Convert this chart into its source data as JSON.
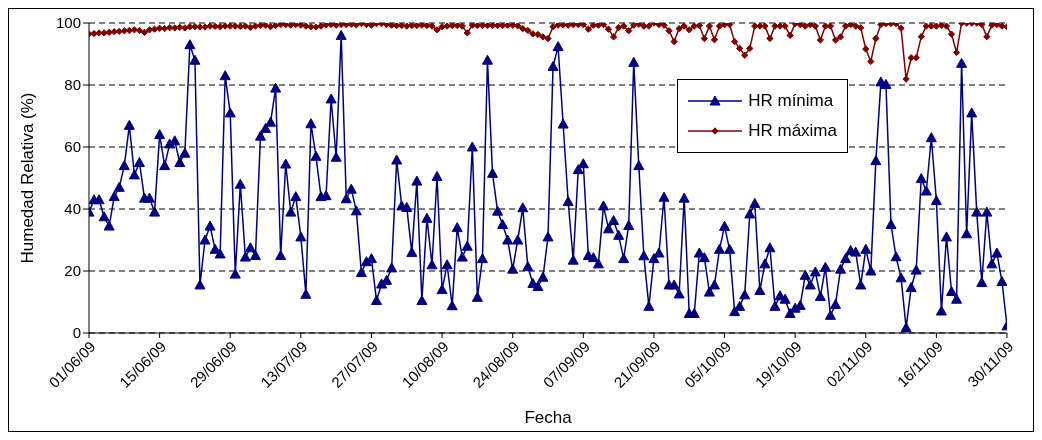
{
  "chart_data": {
    "type": "line",
    "xlabel": "Fecha",
    "ylabel": "Humedad Relativa (%)",
    "ylim": [
      0,
      100
    ],
    "yticks": [
      0,
      20,
      40,
      60,
      80,
      100
    ],
    "xlim": [
      "--06-01",
      "--11-30"
    ],
    "xticks": [
      {
        "value": "--06-01",
        "label": "01/06/09"
      },
      {
        "value": "--06-15",
        "label": "15/06/09"
      },
      {
        "value": "--06-29",
        "label": "29/06/09"
      },
      {
        "value": "--07-13",
        "label": "13/07/09"
      },
      {
        "value": "--07-27",
        "label": "27/07/09"
      },
      {
        "value": "--08-10",
        "label": "10/08/09"
      },
      {
        "value": "--08-24",
        "label": "24/08/09"
      },
      {
        "value": "--09-07",
        "label": "07/09/09"
      },
      {
        "value": "--09-21",
        "label": "21/09/09"
      },
      {
        "value": "--10-05",
        "label": "05/10/09"
      },
      {
        "value": "--10-19",
        "label": "19/10/09"
      },
      {
        "value": "--11-02",
        "label": "02/11/09"
      },
      {
        "value": "--11-16",
        "label": "16/11/09"
      },
      {
        "value": "--11-30",
        "label": "30/11/09"
      }
    ],
    "grid": "y",
    "legend": "top right",
    "line_style": "solid",
    "series": [
      {
        "name": "HR mínima",
        "color": "#000080",
        "marker": "triangle",
        "values": [
          39,
          43,
          43,
          37.5,
          34.5,
          44,
          47,
          54,
          67,
          51,
          55,
          43.5,
          43.5,
          39,
          64,
          54,
          61,
          62,
          55,
          58,
          93,
          88,
          15.5,
          30,
          34.5,
          27,
          25.5,
          83,
          71,
          19,
          48,
          24.5,
          27.5,
          25,
          63.5,
          66,
          68,
          79,
          25,
          54.5,
          39,
          44,
          31,
          12.5,
          67.5,
          57,
          44,
          44.3,
          75.5,
          56.7,
          96,
          43.3,
          46.4,
          39.4,
          19.5,
          23,
          24,
          10.5,
          15.8,
          17,
          21,
          55.8,
          41,
          40.5,
          26,
          49,
          10.5,
          37,
          22,
          50.5,
          14,
          22,
          8.8,
          34,
          24.5,
          28,
          60,
          11.5,
          24,
          88,
          51.5,
          39.3,
          35,
          30,
          20.6,
          30,
          40.4,
          21.4,
          16,
          15,
          18,
          31,
          86,
          92.4,
          67.4,
          42.4,
          23.5,
          52.7,
          54.6,
          25,
          24.3,
          22.3,
          41,
          33.6,
          36.3,
          31.5,
          24,
          34.7,
          87.3,
          54,
          24.9,
          8.6,
          24,
          25.8,
          43.8,
          15.5,
          15.5,
          12.6,
          43.5,
          6.3,
          6.3,
          25.8,
          24.3,
          13.2,
          15.5,
          27,
          34.4,
          27,
          6.9,
          8.6,
          12.3,
          38.4,
          41.8,
          13.7,
          22.3,
          27.5,
          8.6,
          12,
          10.9,
          6.3,
          8,
          8.9,
          18.6,
          15.5,
          19.7,
          11.8,
          21.2,
          5.7,
          9.2,
          20.6,
          24,
          26.6,
          26.1,
          15.5,
          27,
          20,
          55.6,
          81,
          80.2,
          35,
          24.6,
          17.8,
          1.7,
          14.7,
          20.3,
          49.8,
          45.8,
          63,
          42.7,
          7.1,
          31,
          13.4,
          10.9,
          87,
          32,
          71,
          39,
          16.3,
          39,
          22.3,
          25.8,
          16.6,
          2.3
        ]
      },
      {
        "name": "HR máxima",
        "color": "#800000",
        "marker": "diamond",
        "values": [
          96.5,
          96.6,
          96.8,
          96.8,
          97,
          97.2,
          97.3,
          97.5,
          97.6,
          97.8,
          97.6,
          97,
          97.8,
          98,
          98.3,
          98.2,
          98.5,
          98.4,
          98.6,
          98.4,
          98.8,
          98.8,
          98.7,
          98.7,
          99,
          98.9,
          98.8,
          99,
          99,
          99,
          98.9,
          99,
          98.6,
          99,
          99.2,
          99.3,
          98.8,
          99.2,
          99.5,
          99.5,
          99.3,
          99.5,
          99.3,
          99,
          98.8,
          98.7,
          99,
          99.4,
          99.5,
          99.3,
          99.5,
          99.5,
          99.6,
          99.4,
          99.8,
          99.5,
          99.3,
          99.8,
          99.8,
          99.5,
          99.3,
          99.2,
          99.2,
          99,
          99.2,
          99.2,
          99.3,
          99.2,
          99,
          97.8,
          98.8,
          99,
          99.2,
          99.2,
          99,
          96.8,
          99.3,
          99.2,
          99.2,
          99.2,
          99.2,
          99.2,
          99.2,
          99.3,
          99.3,
          99.1,
          98.2,
          97.6,
          96.5,
          96.3,
          95.5,
          95,
          98.8,
          99.3,
          99.4,
          99.3,
          99.5,
          99.5,
          99.5,
          98,
          99.3,
          99.3,
          99.5,
          98,
          95.5,
          98.5,
          99,
          97.5,
          99.3,
          99.6,
          99,
          99,
          100,
          99.5,
          99.3,
          97.5,
          94,
          98.2,
          99,
          97.8,
          99,
          99.2,
          95,
          99,
          94.6,
          99,
          99.5,
          99.5,
          94,
          91.8,
          89.6,
          91.8,
          99,
          99,
          99,
          95,
          99,
          99,
          99,
          96,
          99.8,
          99.5,
          99,
          99.5,
          99,
          94.5,
          99,
          99,
          94.5,
          95.5,
          99,
          99.5,
          99,
          98.5,
          91.6,
          87.6,
          95,
          99.5,
          99.8,
          99.8,
          99.8,
          98.3,
          81.9,
          88.8,
          88.8,
          95.6,
          99,
          99,
          99,
          99.2,
          99,
          96.4,
          90.5,
          100,
          100,
          100,
          100,
          99.5,
          95.6,
          99.3,
          99.5,
          99,
          98.8
        ]
      }
    ],
    "x": [
      "--06-01",
      "--06-02",
      "--06-03",
      "--06-04",
      "--06-05",
      "--06-06",
      "--06-07",
      "--06-08",
      "--06-09",
      "--06-10",
      "--06-11",
      "--06-12",
      "--06-13",
      "--06-14",
      "--06-15",
      "--06-16",
      "--06-17",
      "--06-18",
      "--06-19",
      "--06-20",
      "--06-21",
      "--06-22",
      "--06-23",
      "--06-24",
      "--06-25",
      "--06-26",
      "--06-27",
      "--06-28",
      "--06-29",
      "--06-30",
      "--07-01",
      "--07-02",
      "--07-03",
      "--07-04",
      "--07-05",
      "--07-06",
      "--07-07",
      "--07-08",
      "--07-09",
      "--07-10",
      "--07-11",
      "--07-12",
      "--07-13",
      "--07-14",
      "--07-15",
      "--07-16",
      "--07-17",
      "--07-18",
      "--07-19",
      "--07-20",
      "--07-21",
      "--07-22",
      "--07-23",
      "--07-24",
      "--07-25",
      "--07-26",
      "--07-27",
      "--07-28",
      "--07-29",
      "--07-30",
      "--07-31",
      "--08-01",
      "--08-02",
      "--08-03",
      "--08-04",
      "--08-05",
      "--08-06",
      "--08-07",
      "--08-08",
      "--08-09",
      "--08-10",
      "--08-11",
      "--08-12",
      "--08-13",
      "--08-14",
      "--08-15",
      "--08-16",
      "--08-17",
      "--08-18",
      "--08-19",
      "--08-20",
      "--08-21",
      "--08-22",
      "--08-23",
      "--08-24",
      "--08-25",
      "--08-26",
      "--08-27",
      "--08-28",
      "--08-29",
      "--08-30",
      "--08-31",
      "--09-01",
      "--09-02",
      "--09-03",
      "--09-04",
      "--09-05",
      "--09-06",
      "--09-07",
      "--09-08",
      "--09-09",
      "--09-10",
      "--09-11",
      "--09-12",
      "--09-13",
      "--09-14",
      "--09-15",
      "--09-16",
      "--09-17",
      "--09-18",
      "--09-19",
      "--09-20",
      "--09-21",
      "--09-22",
      "--09-23",
      "--09-24",
      "--09-25",
      "--09-26",
      "--09-27",
      "--09-28",
      "--09-29",
      "--09-30",
      "--10-01",
      "--10-02",
      "--10-03",
      "--10-04",
      "--10-05",
      "--10-06",
      "--10-07",
      "--10-08",
      "--10-09",
      "--10-10",
      "--10-11",
      "--10-12",
      "--10-13",
      "--10-14",
      "--10-15",
      "--10-16",
      "--10-17",
      "--10-18",
      "--10-19",
      "--10-20",
      "--10-21",
      "--10-22",
      "--10-23",
      "--10-24",
      "--10-25",
      "--10-26",
      "--10-27",
      "--10-28",
      "--10-29",
      "--10-30",
      "--10-31",
      "--11-01",
      "--11-02",
      "--11-03",
      "--11-04",
      "--11-05",
      "--11-06",
      "--11-07",
      "--11-08",
      "--11-09",
      "--11-10",
      "--11-11",
      "--11-12",
      "--11-13",
      "--11-14",
      "--11-15",
      "--11-16",
      "--11-17",
      "--11-18",
      "--11-19",
      "--11-20",
      "--11-21",
      "--11-22",
      "--11-23",
      "--11-24",
      "--11-25",
      "--11-26",
      "--11-27",
      "--11-28",
      "--11-29",
      "--11-30"
    ]
  }
}
